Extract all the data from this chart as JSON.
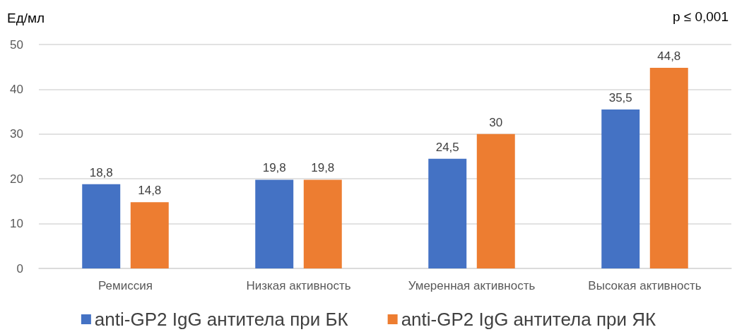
{
  "chart_data": {
    "type": "bar",
    "ylabel": "Ед/мл",
    "annotations": [
      "p ≤ 0,001"
    ],
    "categories": [
      "Ремиссия",
      "Низкая активность",
      "Умеренная активность",
      "Высокая активность"
    ],
    "series": [
      {
        "name": "anti-GP2 IgG антитела при БК",
        "color": "#4472c4",
        "values": [
          18.8,
          19.8,
          24.5,
          35.5
        ],
        "value_labels": [
          "18,8",
          "19,8",
          "24,5",
          "35,5"
        ]
      },
      {
        "name": "anti-GP2 IgG антитела при ЯК",
        "color": "#ed7d31",
        "values": [
          14.8,
          19.8,
          30,
          44.8
        ],
        "value_labels": [
          "14,8",
          "19,8",
          "30",
          "44,8"
        ]
      }
    ],
    "ylim": [
      0,
      50
    ],
    "yticks": [
      0,
      10,
      20,
      30,
      40,
      50
    ],
    "grid": "y",
    "legend": "bottom"
  }
}
